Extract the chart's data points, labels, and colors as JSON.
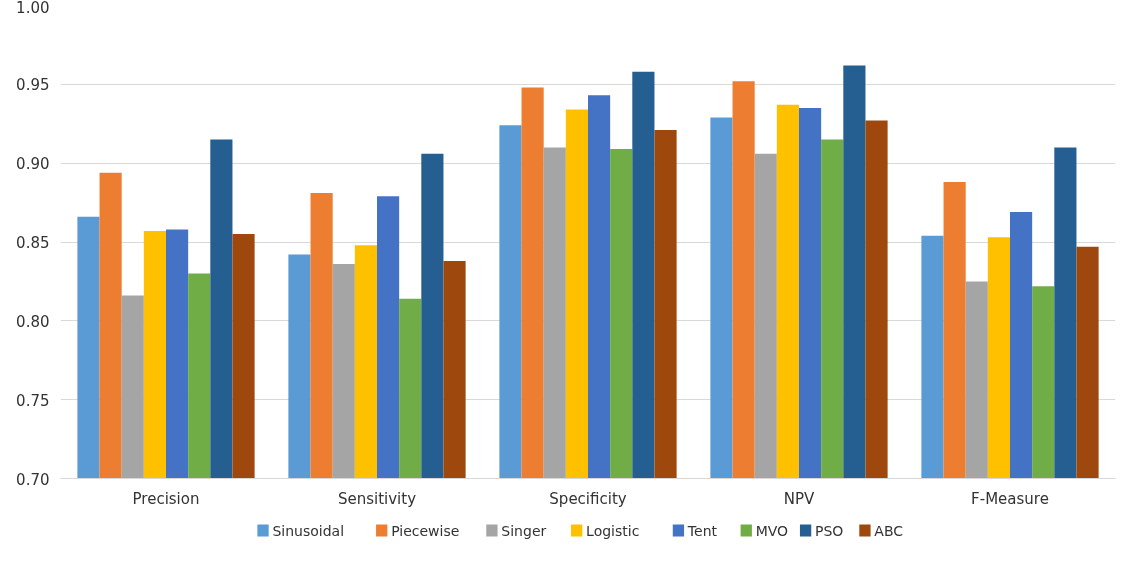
{
  "chart_data": {
    "type": "bar",
    "categories": [
      "Precision",
      "Sensitivity",
      "Specificity",
      "NPV",
      "F-Measure"
    ],
    "series": [
      {
        "name": "Sinusoidal",
        "color": "#5b9bd5",
        "values": [
          0.866,
          0.842,
          0.924,
          0.929,
          0.854
        ]
      },
      {
        "name": "Piecewise",
        "color": "#ed7d31",
        "values": [
          0.894,
          0.881,
          0.948,
          0.952,
          0.888
        ]
      },
      {
        "name": "Singer",
        "color": "#a5a5a5",
        "values": [
          0.816,
          0.836,
          0.91,
          0.906,
          0.825
        ]
      },
      {
        "name": "Logistic",
        "color": "#ffc000",
        "values": [
          0.857,
          0.848,
          0.934,
          0.937,
          0.853
        ]
      },
      {
        "name": "Tent",
        "color": "#4472c4",
        "values": [
          0.858,
          0.879,
          0.943,
          0.935,
          0.869
        ]
      },
      {
        "name": "MVO",
        "color": "#70ad47",
        "values": [
          0.83,
          0.814,
          0.909,
          0.915,
          0.822
        ]
      },
      {
        "name": "PSO",
        "color": "#255e91",
        "values": [
          0.915,
          0.906,
          0.958,
          0.962,
          0.91
        ]
      },
      {
        "name": "ABC",
        "color": "#9e480e",
        "values": [
          0.855,
          0.838,
          0.921,
          0.927,
          0.847
        ]
      }
    ],
    "ylim": [
      0.7,
      1.0
    ],
    "yticks": [
      {
        "value": 0.7,
        "label": "0.70"
      },
      {
        "value": 0.75,
        "label": "0.75"
      },
      {
        "value": 0.8,
        "label": "0.80"
      },
      {
        "value": 0.85,
        "label": "0.85"
      },
      {
        "value": 0.9,
        "label": "0.90"
      },
      {
        "value": 0.95,
        "label": "0.95"
      },
      {
        "value": 1.0,
        "label": "1.00"
      }
    ],
    "grid": "y",
    "legend": "bottom"
  }
}
